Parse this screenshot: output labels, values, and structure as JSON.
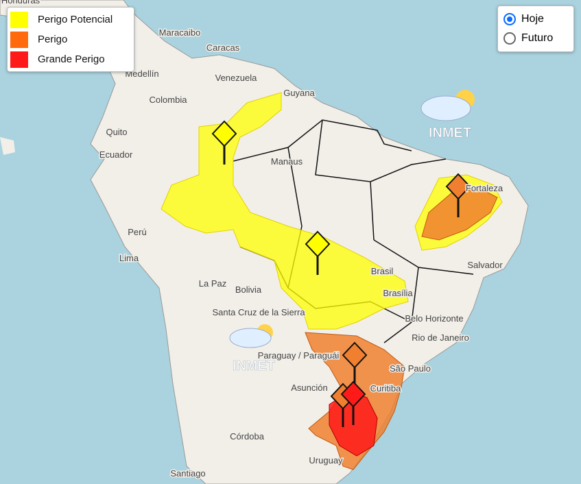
{
  "legend": {
    "items": [
      {
        "label": "Perigo Potencial",
        "color": "#ffff00"
      },
      {
        "label": "Perigo",
        "color": "#ff6a0d"
      },
      {
        "label": "Grande Perigo",
        "color": "#ff1a1a"
      }
    ]
  },
  "period_selector": {
    "options": [
      {
        "label": "Hoje",
        "selected": true
      },
      {
        "label": "Futuro",
        "selected": false
      }
    ]
  },
  "watermarks": [
    "INMET",
    "INMET"
  ],
  "places": [
    "Honduras",
    "Maracaibo",
    "Caracas",
    "Venezuela",
    "Guyana",
    "Medellín",
    "Colombia",
    "Quito",
    "Ecuador",
    "Manaus",
    "Fortaleza",
    "Perú",
    "Lima",
    "La Paz",
    "Bolivia",
    "Brasil",
    "Brasília",
    "Salvador",
    "Belo Horizonte",
    "Rio de Janeiro",
    "São Paulo",
    "Curitiba",
    "Santa Cruz de la Sierra",
    "Paraguay / Paraguái",
    "Asunción",
    "Córdoba",
    "Uruguay",
    "Santiago"
  ]
}
